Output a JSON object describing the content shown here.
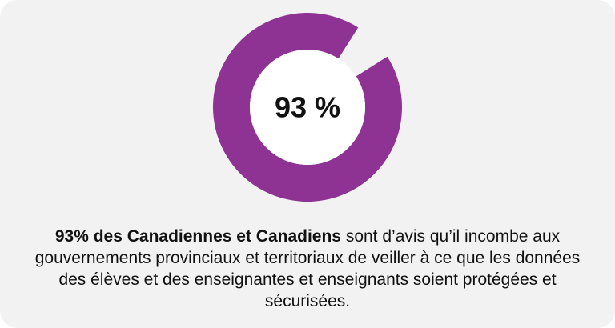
{
  "colors": {
    "card_background": "#f2f2f2",
    "ring": "#8e3294",
    "text": "#111111"
  },
  "chart_data": {
    "type": "pie",
    "style": "donut",
    "center_label": "93 %",
    "values": [
      93,
      7
    ],
    "segments": [
      "filled",
      "gap"
    ]
  },
  "caption": {
    "bold": "93% des Canadiennes et Canadiens",
    "rest": " sont d’avis qu’il incombe aux gouvernements provinciaux et territoriaux de veiller à ce que les données des élèves et des enseignantes et enseignants soient protégées et sécurisées."
  }
}
